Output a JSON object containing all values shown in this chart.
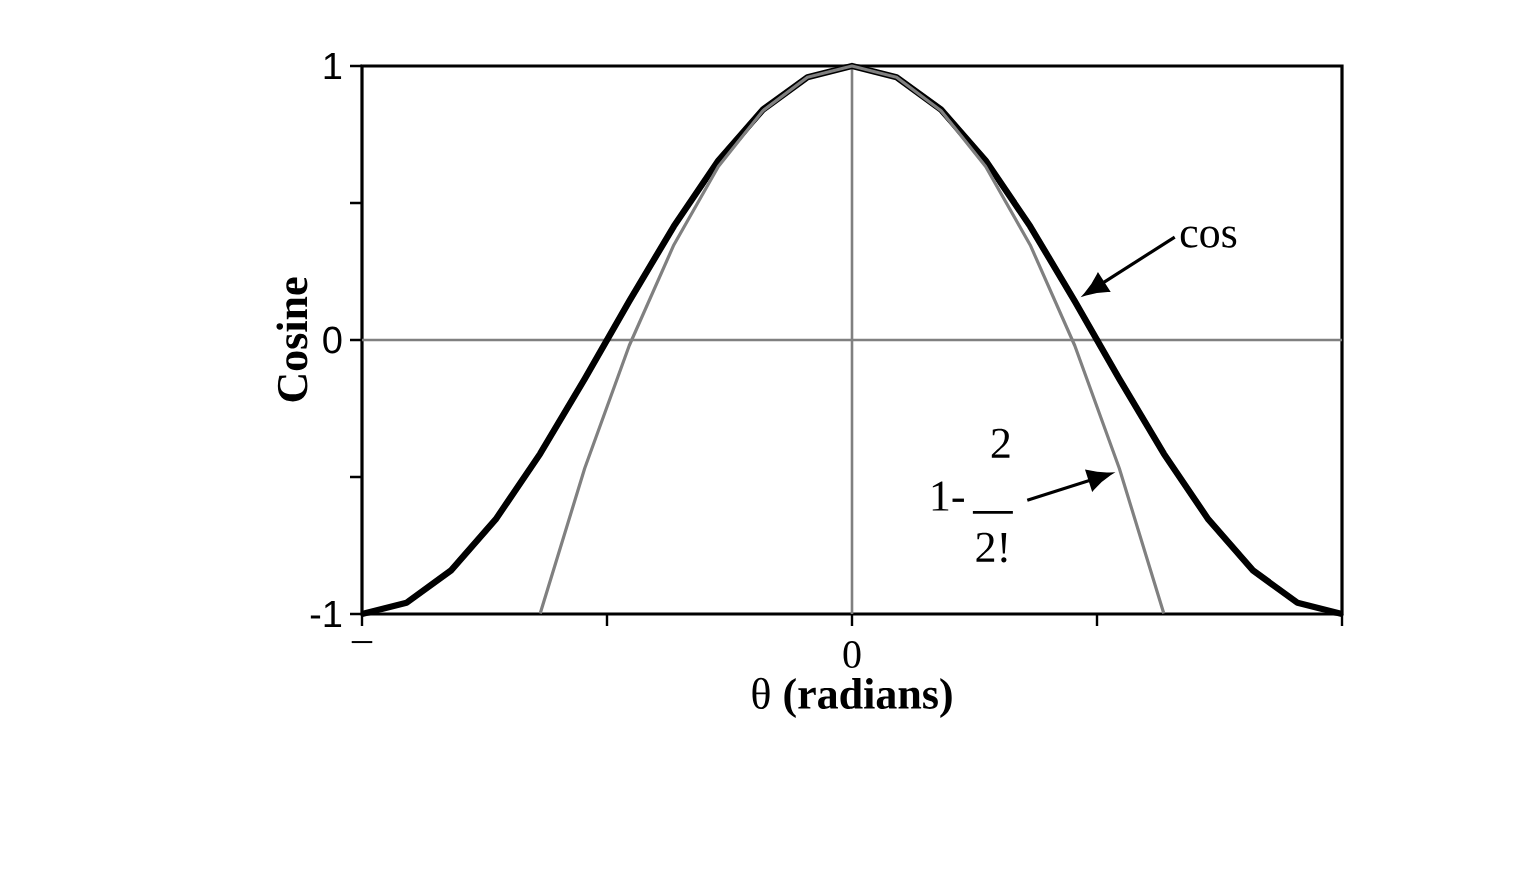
{
  "chart_data": {
    "type": "line",
    "xlabel": "θ **(radians)**",
    "ylabel": "Cosine",
    "categories": [
      "–",
      null,
      null,
      null,
      null,
      null,
      null,
      null,
      null,
      null,
      null,
      "0",
      null,
      null,
      null,
      null,
      null,
      null,
      null,
      null,
      null,
      null,
      null
    ],
    "series": [
      {
        "color": "#000000",
        "values": [
          -1,
          -0.959,
          -0.841,
          -0.655,
          -0.415,
          -0.142,
          0.142,
          0.415,
          0.655,
          0.841,
          0.959,
          1,
          0.959,
          0.841,
          0.655,
          0.415,
          0.142,
          -0.142,
          -0.415,
          -0.655,
          -0.841,
          -0.959,
          -1
        ]
      },
      {
        "color": "#808080",
        "values": [
          null,
          null,
          null,
          null,
          -0.998,
          -0.468,
          -0.02,
          0.347,
          0.633,
          0.837,
          0.959,
          1,
          0.959,
          0.837,
          0.633,
          0.347,
          -0.02,
          -0.468,
          -0.998,
          null,
          null,
          null,
          null
        ]
      }
    ],
    "ylim": [
      -1,
      1
    ],
    "yticks": [
      {
        "value": -1,
        "label": "-1"
      },
      {
        "value": -0.5,
        "label": null
      },
      0,
      {
        "value": 0.5,
        "label": null
      },
      1
    ],
    "ref_lines": [
      {
        "axis": "x",
        "value": "0",
        "color": "#808080"
      },
      {
        "axis": "y",
        "value": 0,
        "color": "#808080"
      }
    ],
    "annotations": [
      "cos",
      "1-",
      "2",
      "2!"
    ],
    "grid": false
  }
}
